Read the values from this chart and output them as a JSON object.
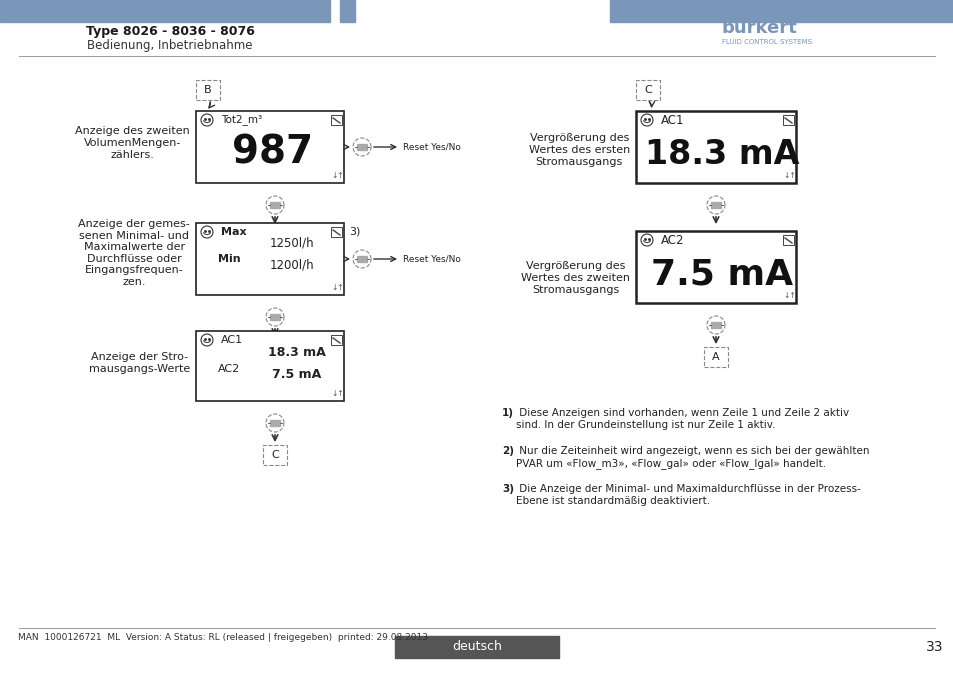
{
  "bg_color": "#ffffff",
  "header_bar_color": "#7a96b8",
  "header_text_left": "Type 8026 - 8036 - 8076",
  "header_subtext_left": "Bedienung, Inbetriebnahme",
  "footer_text": "deutsch",
  "footer_page": "33",
  "footer_note": "MAN  1000126721  ML  Version: A Status: RL (released | freigegeben)  printed: 29.08.2013",
  "footnotes": [
    {
      "sup": "1)",
      "text": " Diese Anzeigen sind vorhanden, wenn Zeile 1 und Zeile 2 aktiv\nsind. In der Grundeinstellung ist nur Zeile 1 aktiv."
    },
    {
      "sup": "2)",
      "text": " Nur die Zeiteinheit wird angezeigt, wenn es sich bei der gewählten\nPVAR um «Flow_m3», «Flow_gal» oder «Flow_lgal» handelt."
    },
    {
      "sup": "3)",
      "text": " Die Anzeige der Minimal- und Maximaldurchflüsse in der Prozess-\nEbene ist standardmäßig deaktiviert."
    }
  ]
}
